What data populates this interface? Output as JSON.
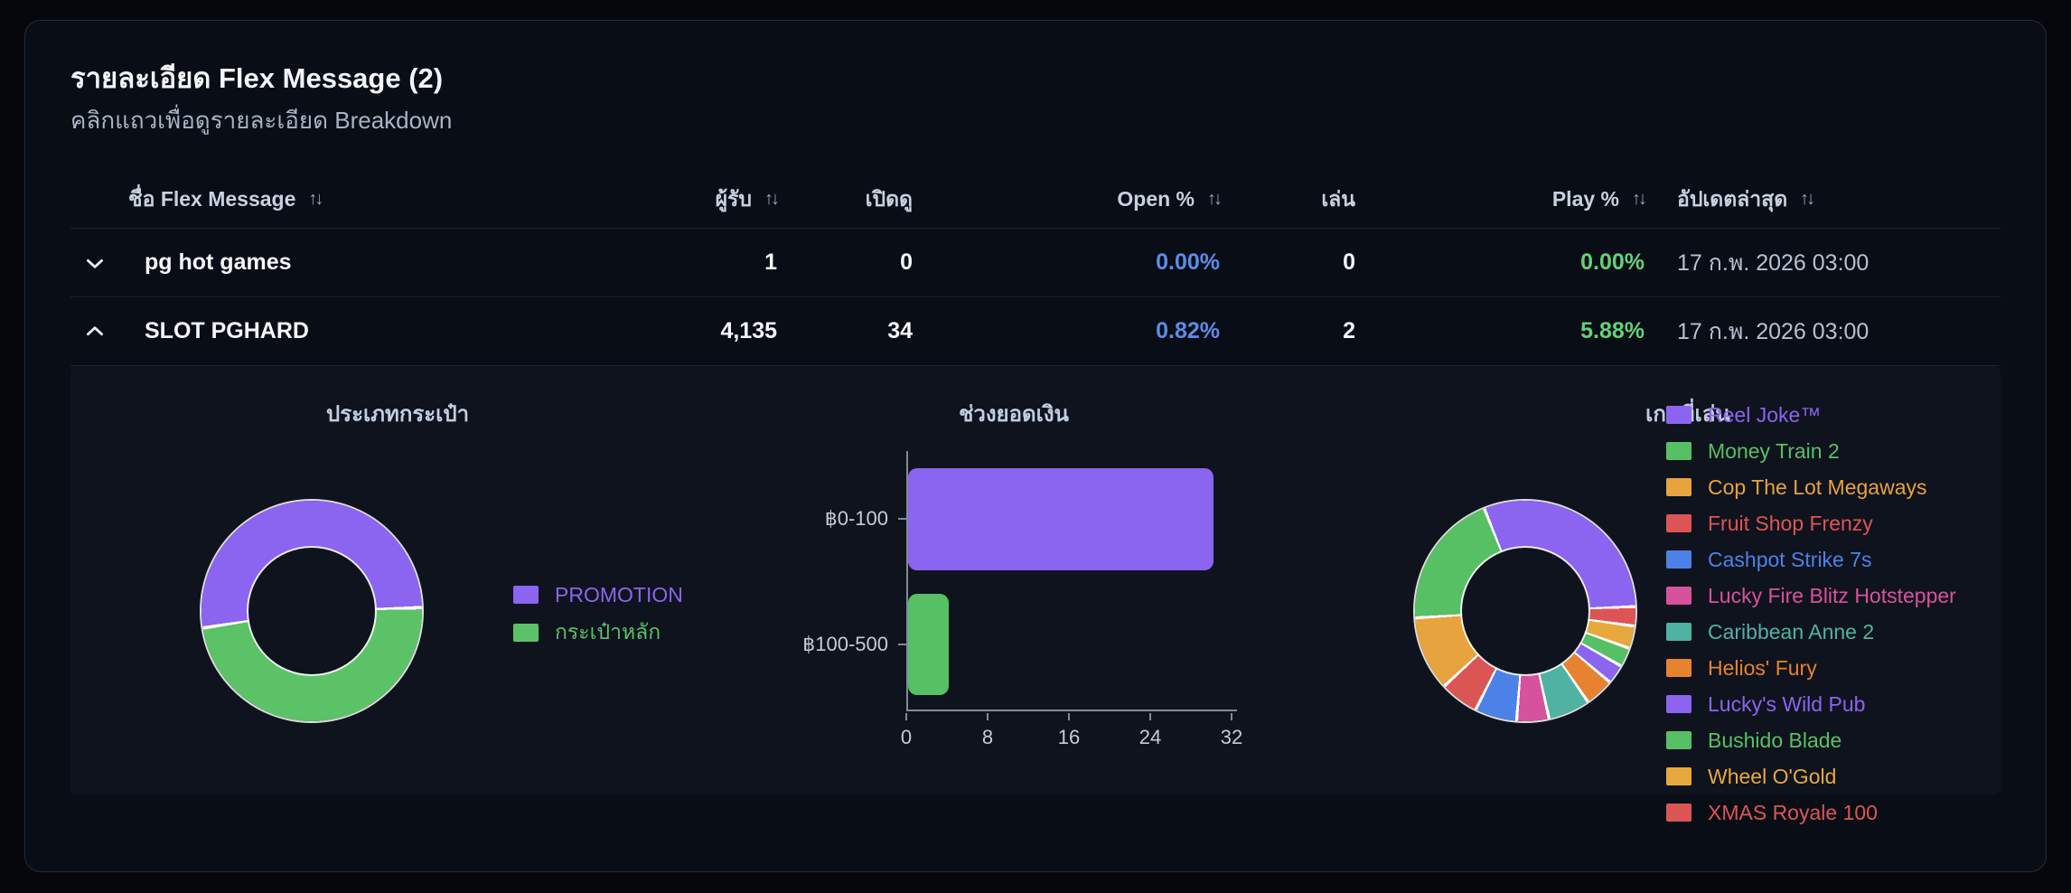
{
  "page": {
    "title": "รายละเอียด Flex Message (2)",
    "subtitle": "คลิกแถวเพื่อดูรายละเอียด Breakdown"
  },
  "table": {
    "headers": {
      "name": "ชื่อ Flex Message",
      "recipients": "ผู้รับ",
      "opens": "เปิดดู",
      "open_pct": "Open %",
      "plays": "เล่น",
      "play_pct": "Play %",
      "updated": "อัปเดตล่าสุด",
      "sort_icon": "↑↓"
    },
    "rows": [
      {
        "name": "pg hot games",
        "recipients": "1",
        "opens": "0",
        "open_pct": "0.00%",
        "plays": "0",
        "play_pct": "0.00%",
        "updated": "17 ก.พ. 2026 03:00",
        "expanded": false
      },
      {
        "name": "SLOT PGHARD",
        "recipients": "4,135",
        "opens": "34",
        "open_pct": "0.82%",
        "plays": "2",
        "play_pct": "5.88%",
        "updated": "17 ก.พ. 2026 03:00",
        "expanded": true
      }
    ]
  },
  "colors": {
    "open_pct": "#5b8ce8",
    "play_pct": "#63d178",
    "purple": "#8b64f0",
    "green": "#5cc268",
    "panel_bg": "#0f131d",
    "card_bg": "#090d16",
    "border": "#262c39"
  },
  "chart_data": [
    {
      "type": "pie",
      "donut": true,
      "title": "ประเภทกระเป๋า",
      "labels": [
        "PROMOTION",
        "กระเป๋าหลัก"
      ],
      "values": [
        52,
        48
      ],
      "colors": [
        "#8b64f0",
        "#5cc268"
      ],
      "start_deg": 262,
      "counter_clockwise": false,
      "gap_deg": 1.8,
      "legend_position": "right"
    },
    {
      "type": "bar",
      "orientation": "horizontal",
      "title": "ช่วงยอดเงิน",
      "categories": [
        "฿0-100",
        "฿100-500"
      ],
      "values": [
        30,
        4
      ],
      "colors": [
        "#8b64f0",
        "#57c065"
      ],
      "xlim": [
        0,
        32
      ],
      "xticks": [
        "0",
        "8",
        "16",
        "24",
        "32"
      ],
      "grid": false
    },
    {
      "type": "pie",
      "donut": true,
      "title": "เกมที่เล่น",
      "labels": [
        "Reel Joke™",
        "Money Train 2",
        "Cop The Lot Megaways",
        "Fruit Shop Frenzy",
        "Cashpot Strike 7s",
        "Lucky Fire Blitz Hotstepper",
        "Caribbean Anne 2",
        "Helios' Fury",
        "Lucky's Wild Pub",
        "Bushido Blade",
        "Wheel O'Gold",
        "XMAS Royale 100"
      ],
      "values": [
        31.5,
        20.5,
        11,
        5.5,
        6,
        4.5,
        6,
        4,
        2.5,
        2.5,
        3,
        2.5
      ],
      "colors": [
        "#8b64f0",
        "#57c065",
        "#e7a33d",
        "#dc5555",
        "#4c82e8",
        "#d7529c",
        "#4fb2a2",
        "#e7822f",
        "#8b64f0",
        "#57c065",
        "#e7a93d",
        "#dc5555"
      ],
      "start_deg": 339,
      "counter_clockwise": true,
      "gap_deg": 1.6,
      "legend_position": "right"
    }
  ]
}
